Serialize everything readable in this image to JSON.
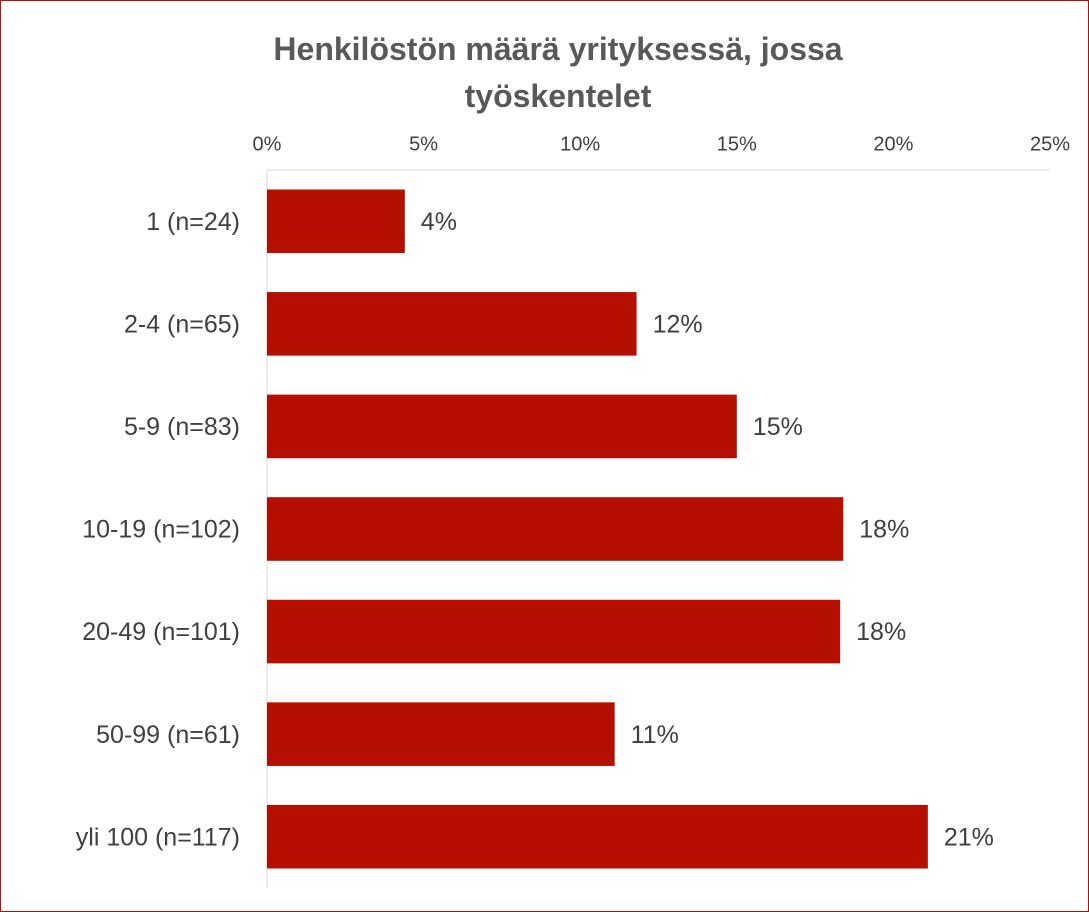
{
  "chart_data": {
    "type": "bar",
    "orientation": "horizontal",
    "title": "Henkilöstön määrä yrityksessä, jossa työskentelet",
    "categories": [
      "1 (n=24)",
      "2-4 (n=65)",
      "5-9 (n=83)",
      "10-19 (n=102)",
      "20-49 (n=101)",
      "50-99 (n=61)",
      "yli 100 (n=117)"
    ],
    "values": [
      4.4,
      11.8,
      15.0,
      18.4,
      18.3,
      11.1,
      21.1
    ],
    "value_labels": [
      "4%",
      "12%",
      "15%",
      "18%",
      "18%",
      "11%",
      "21%"
    ],
    "color": "#b40f00",
    "xlim": [
      0,
      25
    ],
    "xticks": [
      {
        "value": 0,
        "label": "0%"
      },
      {
        "value": 5,
        "label": "5%"
      },
      {
        "value": 10,
        "label": "10%"
      },
      {
        "value": 15,
        "label": "15%"
      },
      {
        "value": 20,
        "label": "20%"
      },
      {
        "value": 25,
        "label": "25%"
      }
    ]
  }
}
